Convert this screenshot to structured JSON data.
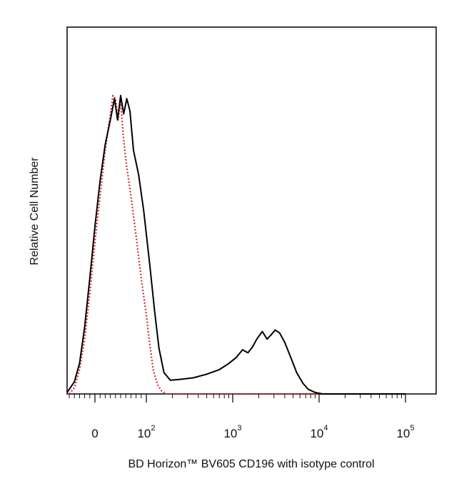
{
  "chart_data": {
    "type": "line",
    "title": "",
    "xlabel": "BD Horizon™ BV605 CD196 with isotype control",
    "ylabel": "Relative Cell Number",
    "x_scale": "biexponential",
    "x_ticks": [
      {
        "value": 0,
        "base": "0",
        "exp": ""
      },
      {
        "value": 100,
        "base": "10",
        "exp": "2"
      },
      {
        "value": 1000,
        "base": "10",
        "exp": "3"
      },
      {
        "value": 10000,
        "base": "10",
        "exp": "4"
      },
      {
        "value": 100000,
        "base": "10",
        "exp": "5"
      }
    ],
    "ylim": [
      0,
      100
    ],
    "grid": false,
    "series": [
      {
        "color": "#000000",
        "line_style": "solid",
        "points": [
          [
            -60,
            0.5
          ],
          [
            -50,
            1.5
          ],
          [
            -40,
            4
          ],
          [
            -30,
            10
          ],
          [
            -20,
            22
          ],
          [
            -10,
            38
          ],
          [
            0,
            55
          ],
          [
            10,
            70
          ],
          [
            20,
            82
          ],
          [
            30,
            90
          ],
          [
            38,
            97
          ],
          [
            44,
            90
          ],
          [
            50,
            98
          ],
          [
            56,
            92
          ],
          [
            62,
            97
          ],
          [
            68,
            93
          ],
          [
            75,
            80
          ],
          [
            85,
            72
          ],
          [
            95,
            60
          ],
          [
            110,
            42
          ],
          [
            125,
            27
          ],
          [
            140,
            15
          ],
          [
            160,
            7
          ],
          [
            190,
            4.5
          ],
          [
            250,
            4.8
          ],
          [
            350,
            5.3
          ],
          [
            500,
            6.5
          ],
          [
            700,
            8
          ],
          [
            900,
            10
          ],
          [
            1100,
            12
          ],
          [
            1300,
            14.5
          ],
          [
            1500,
            13.5
          ],
          [
            1700,
            15.5
          ],
          [
            1900,
            18
          ],
          [
            2200,
            20.5
          ],
          [
            2500,
            18
          ],
          [
            2800,
            19.5
          ],
          [
            3100,
            21
          ],
          [
            3500,
            20
          ],
          [
            4000,
            17
          ],
          [
            4700,
            12
          ],
          [
            5500,
            7
          ],
          [
            6500,
            3.5
          ],
          [
            7500,
            1.5
          ],
          [
            9000,
            0.5
          ],
          [
            11000,
            0
          ],
          [
            100000,
            0
          ]
        ]
      },
      {
        "color": "#d42a35",
        "line_style": "dotted",
        "points": [
          [
            -50,
            0
          ],
          [
            -40,
            2
          ],
          [
            -30,
            8
          ],
          [
            -20,
            18
          ],
          [
            -10,
            33
          ],
          [
            0,
            50
          ],
          [
            10,
            65
          ],
          [
            20,
            80
          ],
          [
            30,
            92
          ],
          [
            35,
            98
          ],
          [
            40,
            97
          ],
          [
            45,
            90
          ],
          [
            50,
            96
          ],
          [
            55,
            85
          ],
          [
            60,
            77
          ],
          [
            70,
            65
          ],
          [
            80,
            52
          ],
          [
            90,
            38
          ],
          [
            100,
            26
          ],
          [
            110,
            16
          ],
          [
            120,
            8
          ],
          [
            135,
            3
          ],
          [
            150,
            1
          ],
          [
            170,
            0
          ],
          [
            100000,
            0
          ]
        ]
      }
    ]
  }
}
